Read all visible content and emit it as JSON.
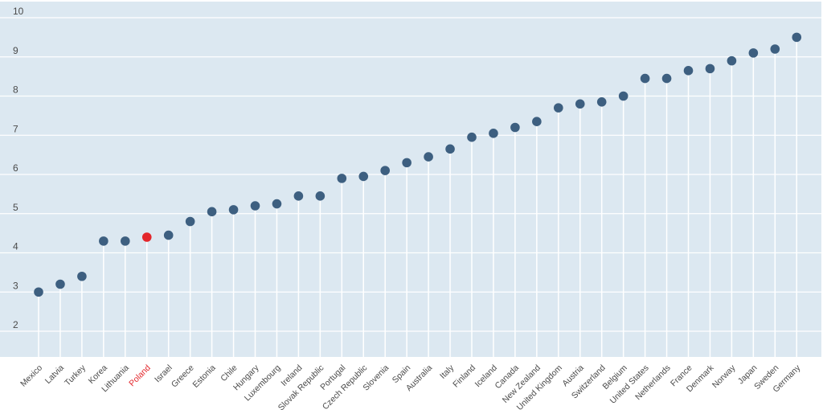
{
  "chart_data": {
    "type": "scatter",
    "style": "lollipop",
    "title": "",
    "xlabel": "",
    "ylabel": "",
    "ylim": [
      1.6,
      10
    ],
    "yticks": [
      2,
      3,
      4,
      5,
      6,
      7,
      8,
      9,
      10
    ],
    "grid": true,
    "colors": {
      "background": "#dce8f1",
      "grid": "#ffffff",
      "marker": "#3d5f80",
      "highlight": "#e3262b",
      "stem": "#ffffff"
    },
    "highlight": "Poland",
    "categories": [
      "Mexico",
      "Latvia",
      "Turkey",
      "Korea",
      "Lithuania",
      "Poland",
      "Israel",
      "Greece",
      "Estonia",
      "Chile",
      "Hungary",
      "Luxembourg",
      "Ireland",
      "Slovak Republic",
      "Portugal",
      "Czech Republic",
      "Slovenia",
      "Spain",
      "Australia",
      "Italy",
      "Finland",
      "Iceland",
      "Canada",
      "New Zealand",
      "United Kingdom",
      "Austria",
      "Switzerland",
      "Belgium",
      "United States",
      "Netherlands",
      "France",
      "Denmark",
      "Norway",
      "Japan",
      "Sweden",
      "Germany"
    ],
    "values": [
      3.0,
      3.2,
      3.4,
      4.3,
      4.3,
      4.4,
      4.45,
      4.8,
      5.05,
      5.1,
      5.2,
      5.25,
      5.45,
      5.45,
      5.9,
      5.95,
      6.1,
      6.3,
      6.45,
      6.65,
      6.95,
      7.05,
      7.2,
      7.35,
      7.7,
      7.8,
      7.85,
      8.0,
      8.45,
      8.45,
      8.65,
      8.7,
      8.9,
      9.1,
      9.2,
      9.5
    ]
  }
}
